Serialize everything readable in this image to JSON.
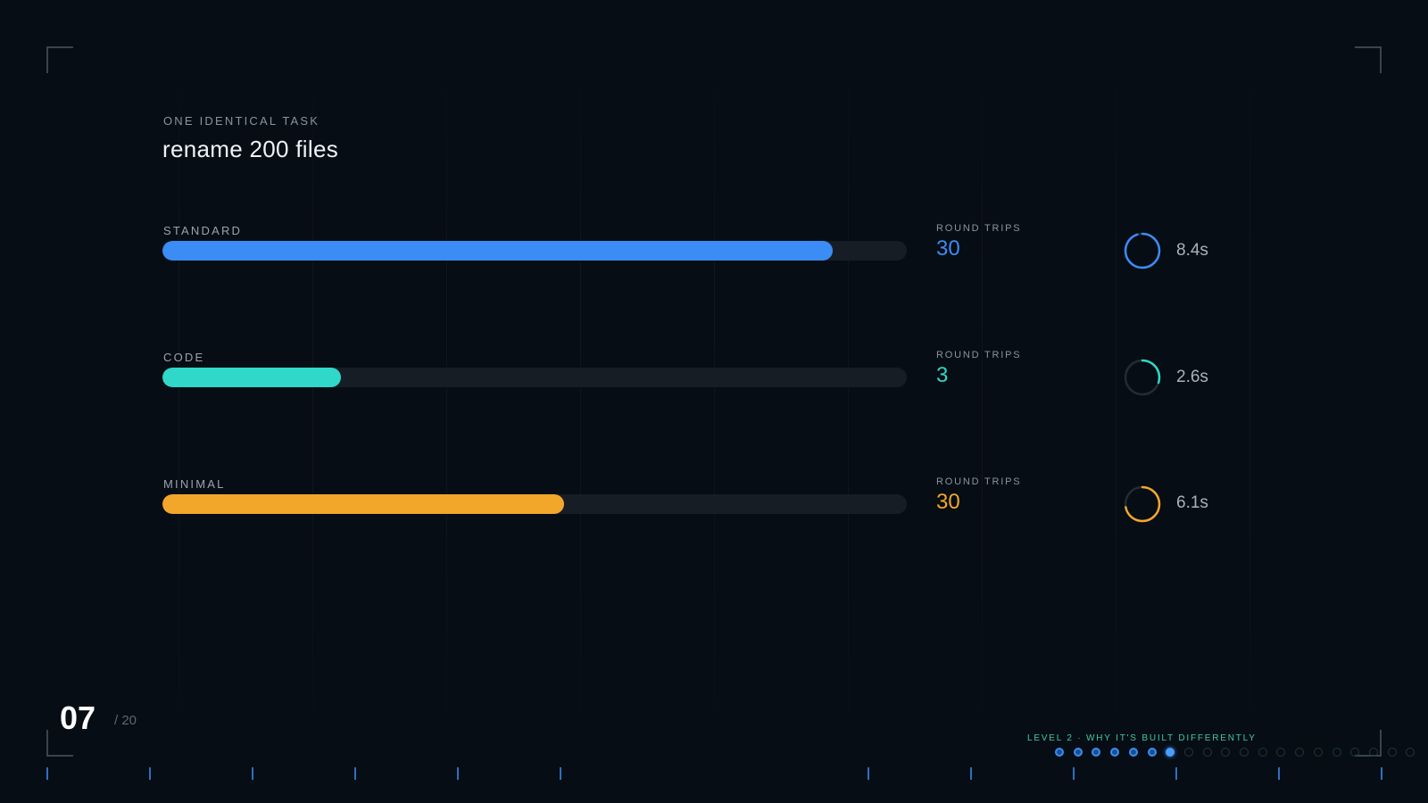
{
  "header": {
    "eyebrow": "ONE IDENTICAL TASK",
    "title": "rename 200 files"
  },
  "rows": [
    {
      "label": "STANDARD",
      "progress_fraction": 0.9,
      "color": "#3b8cf5",
      "round_trips_label": "ROUND TRIPS",
      "round_trips": "30",
      "ring_fraction": 0.95,
      "time": "8.4s"
    },
    {
      "label": "CODE",
      "progress_fraction": 0.24,
      "color": "#2fd8c8",
      "round_trips_label": "ROUND TRIPS",
      "round_trips": "3",
      "ring_fraction": 0.3,
      "time": "2.6s"
    },
    {
      "label": "MINIMAL",
      "progress_fraction": 0.54,
      "color": "#f2a72b",
      "round_trips_label": "ROUND TRIPS",
      "round_trips": "30",
      "ring_fraction": 0.72,
      "time": "6.1s"
    }
  ],
  "footer": {
    "page_number": "07",
    "page_total": "/ 20",
    "level_text": "LEVEL 2 · WHY IT'S BUILT DIFFERENTLY",
    "progress_dots": [
      "done",
      "done",
      "done",
      "done",
      "done",
      "done",
      "current",
      "empty",
      "empty",
      "empty",
      "empty",
      "dim",
      "dim",
      "dim",
      "dim",
      "dim",
      "dim",
      "dim",
      "dim",
      "dim"
    ]
  },
  "colors": {
    "background": "#070d14",
    "accent_green": "#3fc9a8",
    "accent_blue": "#3b8cf5"
  }
}
